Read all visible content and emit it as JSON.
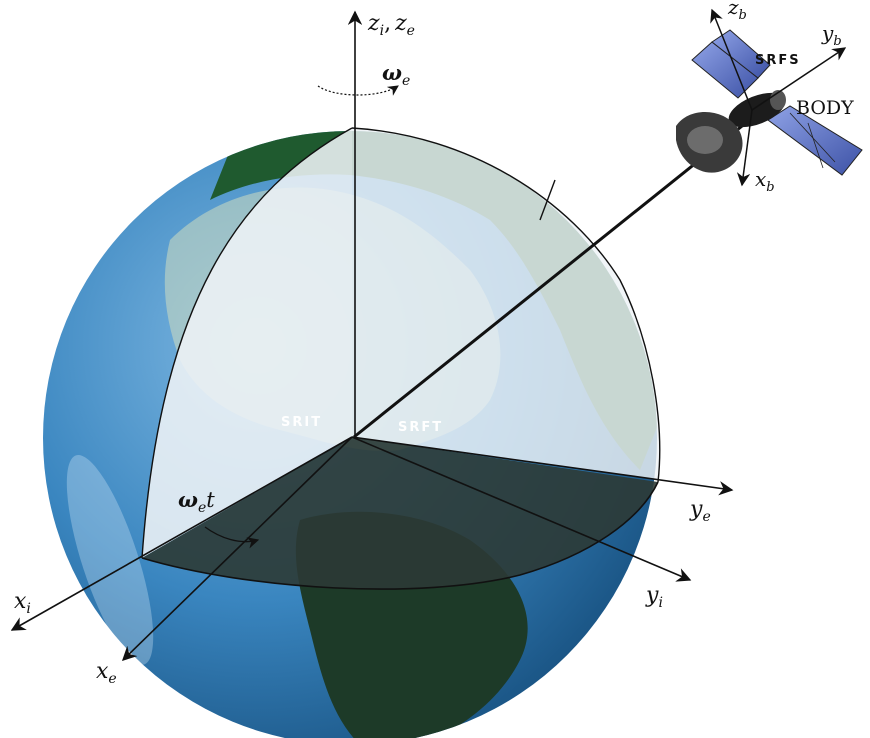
{
  "labels": {
    "zi": "z",
    "zi_sub": "i",
    "ze": "z",
    "ze_sub": "e",
    "omega": "ω",
    "omega_sub": "e",
    "omega_t": "t",
    "xi": "x",
    "xi_sub": "i",
    "xe": "x",
    "xe_sub": "e",
    "yi": "y",
    "yi_sub": "i",
    "ye": "y",
    "ye_sub": "e",
    "zb": "z",
    "zb_sub": "b",
    "yb": "y",
    "yb_sub": "b",
    "xb": "x",
    "xb_sub": "b",
    "srit": "SRIT",
    "srft": "SRFT",
    "srfs": "SRFS",
    "body": "BODY",
    "comma": ","
  },
  "colors": {
    "ocean": "#3a86c0",
    "ocean_dark": "#1f5f93",
    "land": "#1f5a2f",
    "land_light": "#dfe9d3",
    "section_light": "#eef3f6",
    "section_dark": "#2c3a35",
    "panel": "#4a63b8"
  }
}
